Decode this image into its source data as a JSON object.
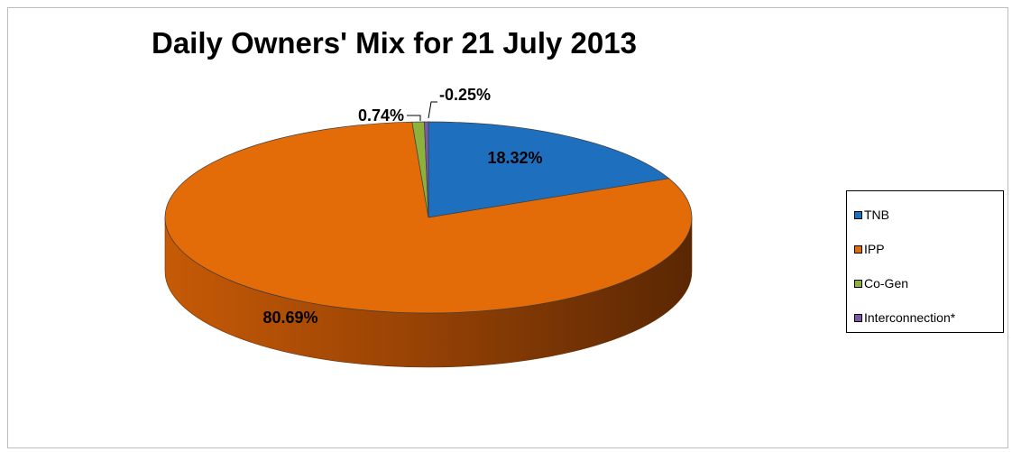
{
  "chart_data": {
    "type": "pie",
    "title": "Daily Owners' Mix for 21 July 2013",
    "categories": [
      "TNB",
      "IPP",
      "Co-Gen",
      "Interconnection*"
    ],
    "values": [
      18.32,
      80.69,
      0.74,
      -0.25
    ],
    "data_labels": [
      "18.32%",
      "80.69%",
      "0.74%",
      "-0.25%"
    ],
    "colors": [
      "#1f6fbf",
      "#e36c09",
      "#8db13c",
      "#7a5aa6"
    ],
    "legend_position": "right",
    "three_d": true
  }
}
